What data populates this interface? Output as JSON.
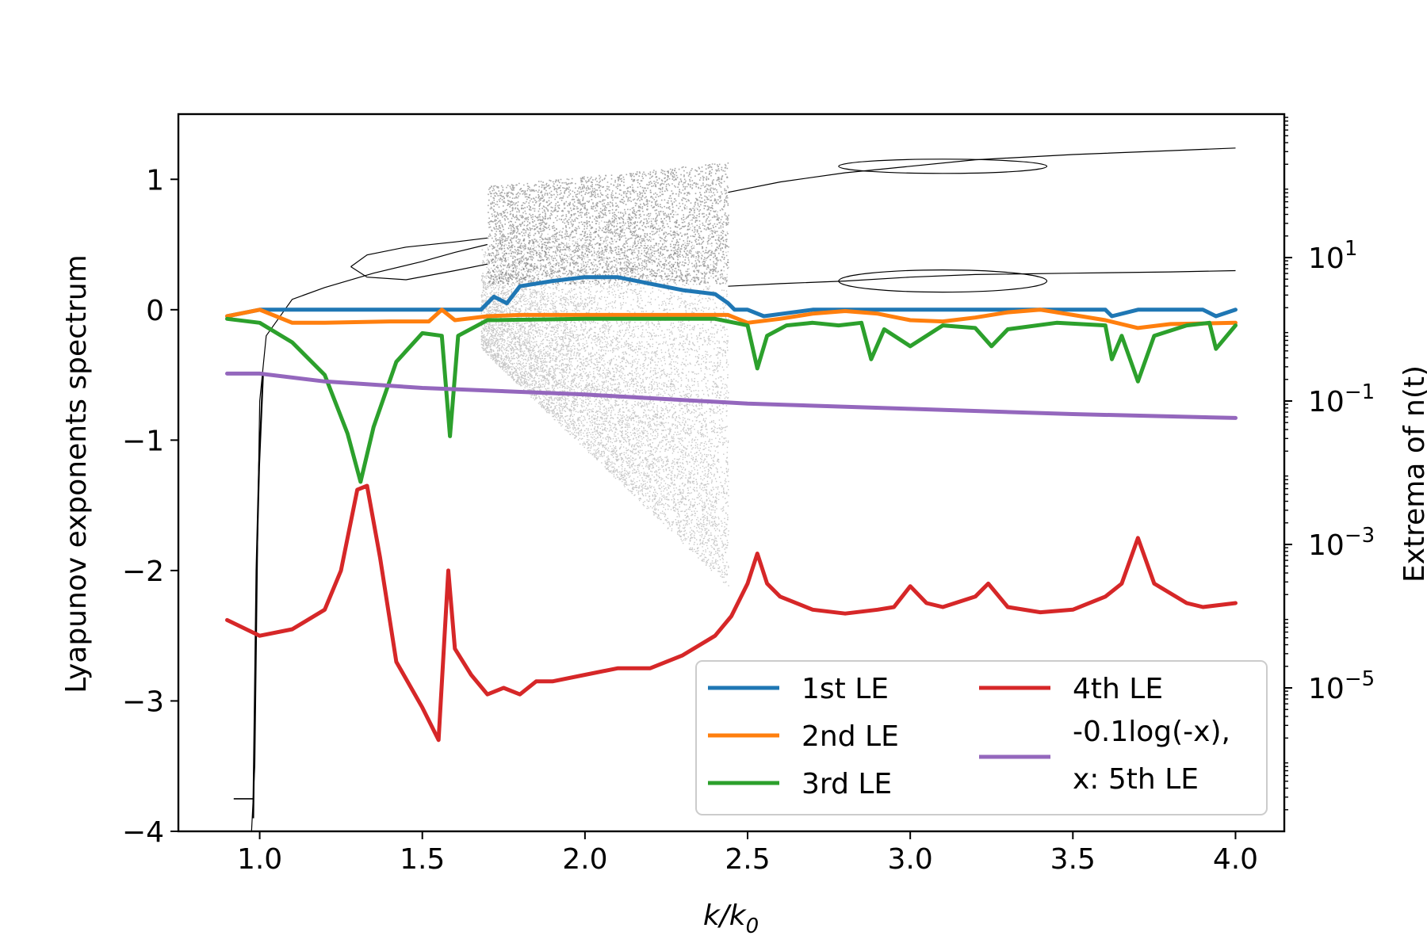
{
  "chart_data": {
    "type": "line",
    "xlabel": "k/k",
    "xlabel_sub": "0",
    "ylabel": "Lyapunov exponents spectrum",
    "y2label": "Extrema of n(t)",
    "xlim": [
      0.75,
      4.15
    ],
    "ylim": [
      -4,
      1.5
    ],
    "y2_scale": "log",
    "y2lim": [
      1e-07,
      1000
    ],
    "x_ticks": [
      {
        "value": 1.0,
        "label": "1.0"
      },
      {
        "value": 1.5,
        "label": "1.5"
      },
      {
        "value": 2.0,
        "label": "2.0"
      },
      {
        "value": 2.5,
        "label": "2.5"
      },
      {
        "value": 3.0,
        "label": "3.0"
      },
      {
        "value": 3.5,
        "label": "3.5"
      },
      {
        "value": 4.0,
        "label": "4.0"
      }
    ],
    "y_ticks": [
      {
        "value": 1,
        "label": "1"
      },
      {
        "value": 0,
        "label": "0"
      },
      {
        "value": -1,
        "label": "−1"
      },
      {
        "value": -2,
        "label": "−2"
      },
      {
        "value": -3,
        "label": "−3"
      },
      {
        "value": -4,
        "label": "−4"
      }
    ],
    "y2_ticks": [
      {
        "value": 10,
        "base": "10",
        "exp": "1"
      },
      {
        "value": 0.1,
        "base": "10",
        "exp": "−1"
      },
      {
        "value": 0.001,
        "base": "10",
        "exp": "−3"
      },
      {
        "value": 1e-05,
        "base": "10",
        "exp": "−5"
      }
    ],
    "grid": false,
    "legend_position": "lower-right",
    "legend_columns": 2,
    "series": [
      {
        "name": "1st LE",
        "color": "#1f77b4",
        "x": [
          0.9,
          1.0,
          1.05,
          1.2,
          1.4,
          1.6,
          1.68,
          1.72,
          1.76,
          1.8,
          1.9,
          2.0,
          2.1,
          2.2,
          2.3,
          2.4,
          2.44,
          2.46,
          2.5,
          2.55,
          2.7,
          3.0,
          3.3,
          3.5,
          3.6,
          3.62,
          3.7,
          3.9,
          3.94,
          4.0
        ],
        "y": [
          -0.05,
          0.0,
          0.0,
          0.0,
          0.0,
          0.0,
          0.0,
          0.1,
          0.05,
          0.18,
          0.22,
          0.25,
          0.25,
          0.2,
          0.15,
          0.12,
          0.05,
          0.0,
          0.0,
          -0.05,
          0.0,
          0.0,
          0.0,
          0.0,
          0.0,
          -0.05,
          0.0,
          0.0,
          -0.05,
          0.0
        ]
      },
      {
        "name": "2nd LE",
        "color": "#ff7f0e",
        "x": [
          0.9,
          1.0,
          1.05,
          1.1,
          1.2,
          1.4,
          1.52,
          1.56,
          1.6,
          1.7,
          1.8,
          2.0,
          2.2,
          2.44,
          2.5,
          2.6,
          2.7,
          2.8,
          2.9,
          3.0,
          3.1,
          3.2,
          3.3,
          3.4,
          3.5,
          3.6,
          3.7,
          3.8,
          4.0
        ],
        "y": [
          -0.05,
          0.0,
          -0.05,
          -0.1,
          -0.1,
          -0.09,
          -0.09,
          0.0,
          -0.08,
          -0.05,
          -0.04,
          -0.04,
          -0.04,
          -0.04,
          -0.1,
          -0.07,
          -0.03,
          -0.01,
          -0.03,
          -0.08,
          -0.09,
          -0.06,
          -0.02,
          0.0,
          -0.04,
          -0.08,
          -0.14,
          -0.11,
          -0.1
        ]
      },
      {
        "name": "3rd LE",
        "color": "#2ca02c",
        "x": [
          0.9,
          1.0,
          1.1,
          1.2,
          1.27,
          1.31,
          1.35,
          1.42,
          1.5,
          1.56,
          1.585,
          1.61,
          1.7,
          2.0,
          2.4,
          2.5,
          2.53,
          2.56,
          2.62,
          2.7,
          2.78,
          2.85,
          2.88,
          2.92,
          3.0,
          3.1,
          3.2,
          3.25,
          3.3,
          3.45,
          3.6,
          3.62,
          3.65,
          3.7,
          3.75,
          3.85,
          3.92,
          3.94,
          4.0
        ],
        "y": [
          -0.07,
          -0.1,
          -0.25,
          -0.5,
          -0.95,
          -1.32,
          -0.9,
          -0.4,
          -0.18,
          -0.2,
          -0.97,
          -0.2,
          -0.08,
          -0.07,
          -0.07,
          -0.12,
          -0.45,
          -0.2,
          -0.12,
          -0.1,
          -0.12,
          -0.1,
          -0.38,
          -0.15,
          -0.28,
          -0.12,
          -0.14,
          -0.28,
          -0.15,
          -0.1,
          -0.12,
          -0.38,
          -0.2,
          -0.55,
          -0.2,
          -0.12,
          -0.1,
          -0.3,
          -0.12
        ]
      },
      {
        "name": "4th LE",
        "color": "#d62728",
        "x": [
          0.9,
          1.0,
          1.1,
          1.2,
          1.25,
          1.3,
          1.33,
          1.37,
          1.42,
          1.5,
          1.55,
          1.58,
          1.6,
          1.65,
          1.7,
          1.75,
          1.8,
          1.85,
          1.9,
          2.0,
          2.1,
          2.2,
          2.3,
          2.4,
          2.45,
          2.5,
          2.53,
          2.56,
          2.6,
          2.7,
          2.8,
          2.9,
          2.95,
          3.0,
          3.05,
          3.1,
          3.2,
          3.24,
          3.3,
          3.4,
          3.5,
          3.6,
          3.65,
          3.7,
          3.75,
          3.85,
          3.9,
          4.0
        ],
        "y": [
          -2.38,
          -2.5,
          -2.45,
          -2.3,
          -2.0,
          -1.38,
          -1.35,
          -1.9,
          -2.7,
          -3.05,
          -3.3,
          -2.0,
          -2.6,
          -2.8,
          -2.95,
          -2.9,
          -2.95,
          -2.85,
          -2.85,
          -2.8,
          -2.75,
          -2.75,
          -2.65,
          -2.5,
          -2.35,
          -2.1,
          -1.87,
          -2.1,
          -2.2,
          -2.3,
          -2.33,
          -2.3,
          -2.28,
          -2.12,
          -2.25,
          -2.28,
          -2.2,
          -2.1,
          -2.28,
          -2.32,
          -2.3,
          -2.2,
          -2.1,
          -1.75,
          -2.1,
          -2.25,
          -2.28,
          -2.25
        ]
      },
      {
        "name": "-0.1log(-x),",
        "name_line2": " x: 5th LE",
        "color": "#9467bd",
        "x": [
          0.9,
          1.0,
          1.2,
          1.5,
          2.0,
          2.5,
          3.0,
          3.5,
          4.0
        ],
        "y": [
          -0.49,
          -0.49,
          -0.55,
          -0.6,
          -0.65,
          -0.72,
          -0.76,
          -0.8,
          -0.83
        ]
      }
    ]
  }
}
